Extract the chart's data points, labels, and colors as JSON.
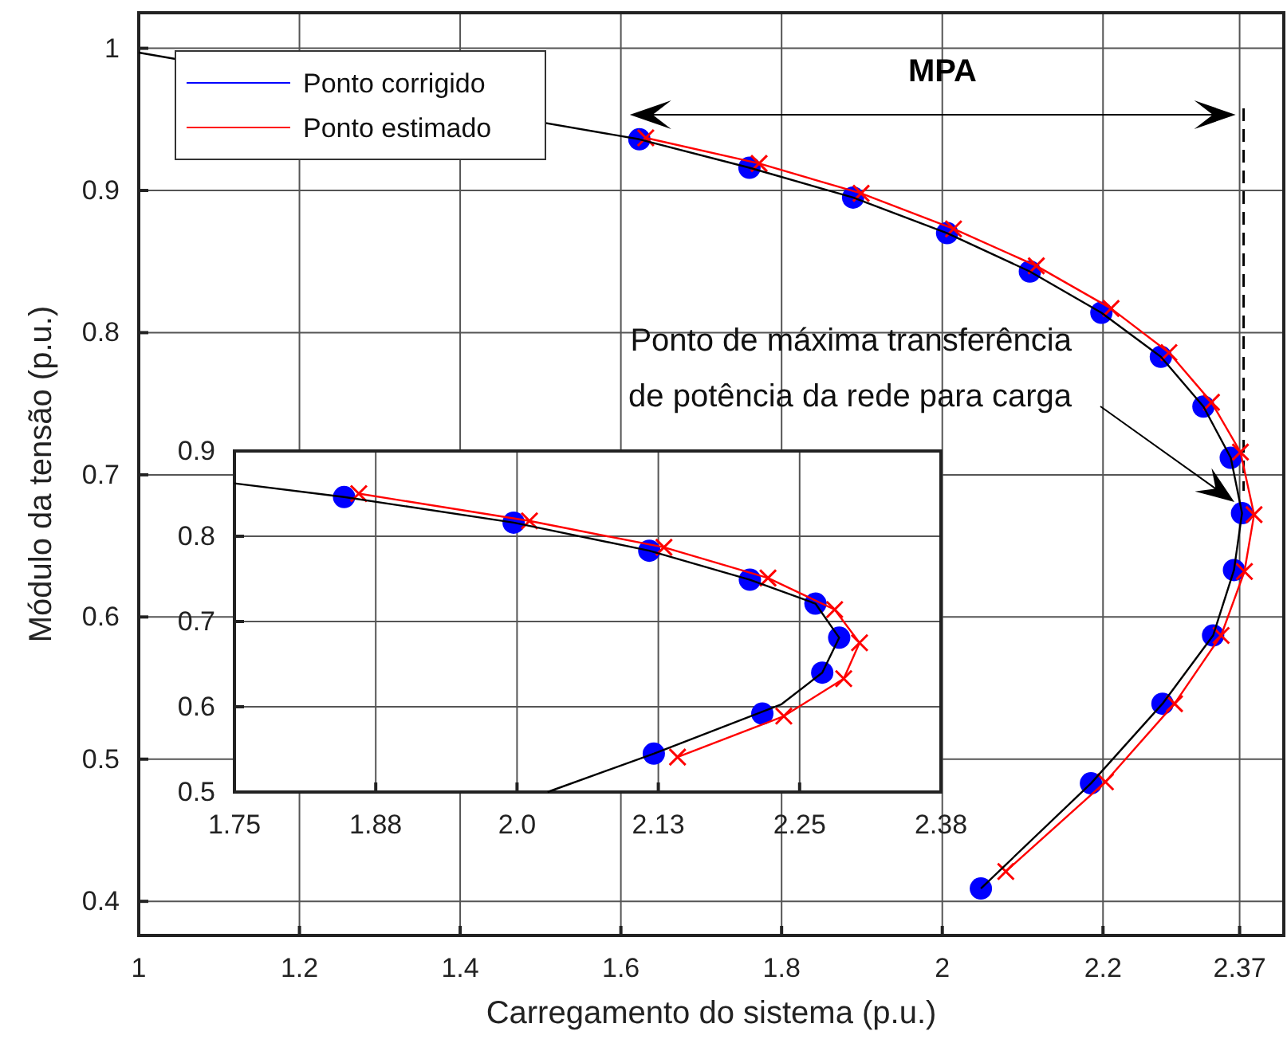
{
  "chart_data": [
    {
      "type": "line",
      "xlabel": "Carregamento do sistema (p.u.)",
      "ylabel": "Módulo da tensão (p.u.)",
      "xlim": [
        1,
        2.425
      ],
      "ylim": [
        0.376,
        1.025
      ],
      "xticks": [
        1,
        1.2,
        1.4,
        1.6,
        1.8,
        2,
        2.2,
        2.37
      ],
      "yticks": [
        0.4,
        0.5,
        0.6,
        0.7,
        0.8,
        0.9,
        1
      ],
      "grid": true,
      "legend": "top left",
      "series": [
        {
          "name": "Ponto corrigido",
          "type": "scatter",
          "marker": "circle",
          "color": "#0000ff",
          "x": [
            1.623,
            1.76,
            1.889,
            2.006,
            2.109,
            2.198,
            2.272,
            2.325,
            2.359,
            2.373,
            2.363,
            2.337,
            2.274,
            2.185,
            2.048
          ],
          "values": [
            0.936,
            0.916,
            0.895,
            0.87,
            0.843,
            0.814,
            0.783,
            0.748,
            0.712,
            0.673,
            0.633,
            0.587,
            0.539,
            0.483,
            0.409
          ]
        },
        {
          "name": "Ponto estimado",
          "type": "line",
          "marker": "cross",
          "color": "#ff0000",
          "x": [
            1.631,
            1.772,
            1.899,
            2.014,
            2.117,
            2.21,
            2.282,
            2.335,
            2.371,
            2.388,
            2.376,
            2.347,
            2.289,
            2.203,
            2.079
          ],
          "values": [
            0.937,
            0.919,
            0.898,
            0.873,
            0.847,
            0.817,
            0.786,
            0.751,
            0.716,
            0.672,
            0.632,
            0.587,
            0.539,
            0.484,
            0.421
          ]
        },
        {
          "type": "line",
          "marker": "none",
          "color": "#000000",
          "x": [
            1,
            1.623,
            1.76,
            1.889,
            2.006,
            2.109,
            2.198,
            2.272,
            2.325,
            2.359,
            2.373,
            2.363,
            2.337,
            2.274,
            2.185,
            2.048
          ],
          "values": [
            0.997,
            0.936,
            0.916,
            0.895,
            0.87,
            0.843,
            0.814,
            0.783,
            0.748,
            0.712,
            0.673,
            0.633,
            0.587,
            0.539,
            0.483,
            0.409
          ]
        }
      ],
      "ref_lines": [
        {
          "axis": "x",
          "value": 2.375,
          "line_style": "dashed",
          "color": "#000000"
        }
      ],
      "annotations": [
        "MPA",
        "Ponto de máxima transferência\nde potência da rede para carga"
      ]
    },
    {
      "type": "line",
      "xlim": [
        1.75,
        2.375
      ],
      "ylim": [
        0.5,
        0.9
      ],
      "xticks": [
        {
          "value": 1.75,
          "label": "1.75"
        },
        {
          "value": 1.875,
          "label": "1.88"
        },
        {
          "value": 2.0,
          "label": "2.0"
        },
        {
          "value": 2.125,
          "label": "2.13"
        },
        {
          "value": 2.25,
          "label": "2.25"
        },
        {
          "value": 2.375,
          "label": "2.38"
        }
      ],
      "yticks": [
        0.5,
        0.6,
        0.7,
        0.8,
        0.9
      ],
      "grid": true,
      "series": [
        {
          "type": "scatter",
          "marker": "circle",
          "color": "#0000ff",
          "x": [
            1.847,
            1.997,
            2.117,
            2.206,
            2.264,
            2.285,
            2.27,
            2.217,
            2.121
          ],
          "values": [
            0.846,
            0.816,
            0.783,
            0.749,
            0.721,
            0.681,
            0.64,
            0.592,
            0.545
          ]
        },
        {
          "type": "line",
          "marker": "cross",
          "color": "#ff0000",
          "x": [
            1.86,
            2.011,
            2.13,
            2.222,
            2.281,
            2.303,
            2.289,
            2.236,
            2.142
          ],
          "values": [
            0.85,
            0.818,
            0.787,
            0.751,
            0.714,
            0.675,
            0.633,
            0.589,
            0.541
          ]
        },
        {
          "type": "line",
          "marker": "none",
          "color": "#000000",
          "x": [
            1.75,
            1.847,
            1.997,
            2.117,
            2.206,
            2.264,
            2.285,
            2.27,
            2.234,
            2.121,
            2.027
          ],
          "values": [
            0.862,
            0.846,
            0.816,
            0.783,
            0.749,
            0.721,
            0.681,
            0.64,
            0.603,
            0.545,
            0.5
          ]
        }
      ]
    }
  ]
}
